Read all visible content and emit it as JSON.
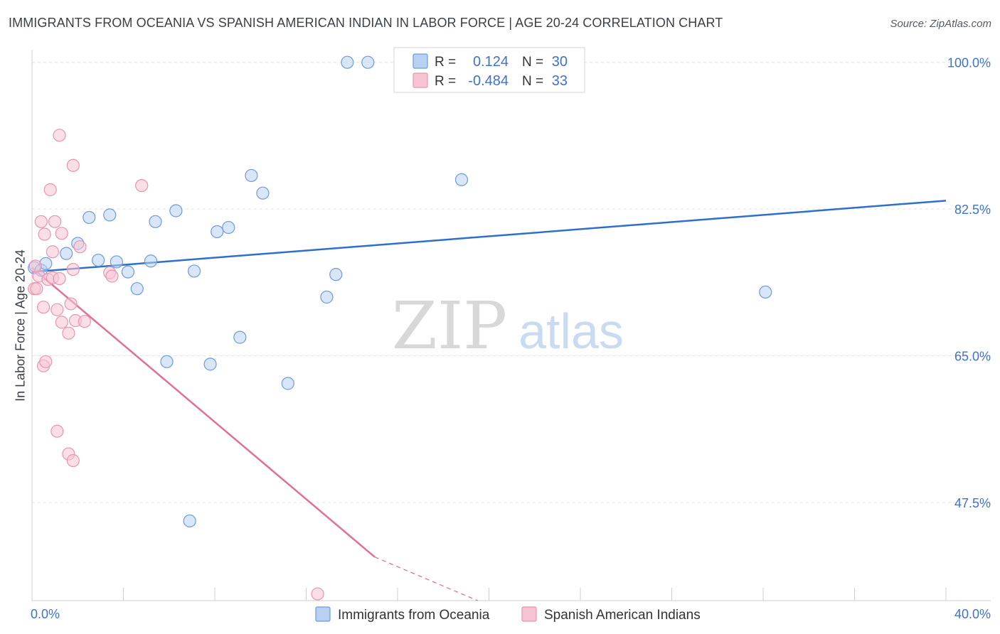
{
  "title": "IMMIGRANTS FROM OCEANIA VS SPANISH AMERICAN INDIAN IN LABOR FORCE | AGE 20-24 CORRELATION CHART",
  "source": "Source: ZipAtlas.com",
  "watermark": {
    "zip": "ZIP",
    "atlas": "atlas"
  },
  "colors": {
    "blue_fill": "#b8d1f3",
    "blue_stroke": "#6f9bd8",
    "blue_line": "#2f6fcc",
    "pink_fill": "#f7c4d4",
    "pink_stroke": "#e795b1",
    "pink_line": "#e0709a",
    "axis_text": "#3f72c9",
    "grid": "#e3e3e3"
  },
  "legend_top": {
    "rows": [
      {
        "r_label": "R =",
        "r_value": "0.124",
        "n_label": "N =",
        "n_value": "30"
      },
      {
        "r_label": "R =",
        "r_value": "-0.484",
        "n_label": "N =",
        "n_value": "33"
      }
    ]
  },
  "chart_data": {
    "type": "scatter",
    "title": "IMMIGRANTS FROM OCEANIA VS SPANISH AMERICAN INDIAN IN LABOR FORCE | AGE 20-24 CORRELATION CHART",
    "ylabel": "In Labor Force | Age 20-24",
    "xlabel": "",
    "xlim": [
      0,
      40
    ],
    "ylim": [
      35.8,
      101.5
    ],
    "x_tick_labels": [
      "0.0%",
      "40.0%"
    ],
    "y_ticks": [
      47.5,
      65.0,
      82.5,
      100.0
    ],
    "y_tick_labels": [
      "47.5%",
      "65.0%",
      "82.5%",
      "100.0%"
    ],
    "grid": true,
    "legend_position": "bottom",
    "series": [
      {
        "name": "Immigrants from Oceania",
        "r": 0.124,
        "n": 30,
        "trend": {
          "x": [
            0,
            40
          ],
          "y": [
            75.0,
            83.5
          ],
          "dashed_to": null
        },
        "points": [
          [
            0.1,
            75.5
          ],
          [
            0.4,
            75.2
          ],
          [
            0.6,
            76.0
          ],
          [
            1.5,
            77.2
          ],
          [
            2.0,
            78.4
          ],
          [
            2.5,
            81.5
          ],
          [
            2.9,
            76.4
          ],
          [
            3.4,
            81.8
          ],
          [
            3.7,
            76.2
          ],
          [
            4.2,
            75.0
          ],
          [
            4.6,
            73.0
          ],
          [
            5.2,
            76.3
          ],
          [
            5.4,
            81.0
          ],
          [
            5.9,
            64.3
          ],
          [
            6.3,
            82.3
          ],
          [
            6.9,
            45.3
          ],
          [
            7.1,
            75.1
          ],
          [
            7.8,
            64.0
          ],
          [
            8.1,
            79.8
          ],
          [
            8.6,
            80.3
          ],
          [
            9.1,
            67.2
          ],
          [
            9.6,
            86.5
          ],
          [
            10.1,
            84.4
          ],
          [
            11.2,
            61.7
          ],
          [
            12.9,
            72.0
          ],
          [
            13.3,
            74.7
          ],
          [
            13.8,
            100.0
          ],
          [
            14.7,
            100.0
          ],
          [
            18.8,
            86.0
          ],
          [
            32.1,
            72.6
          ]
        ]
      },
      {
        "name": "Spanish American Indians",
        "r": -0.484,
        "n": 33,
        "trend": {
          "x": [
            0,
            15.0
          ],
          "y": [
            75.5,
            41.0
          ],
          "dashed_to": [
            19.5,
            35.8
          ]
        },
        "points": [
          [
            0.1,
            73.0
          ],
          [
            0.2,
            73.0
          ],
          [
            0.3,
            74.5
          ],
          [
            0.4,
            81.0
          ],
          [
            0.5,
            70.8
          ],
          [
            0.5,
            63.8
          ],
          [
            0.6,
            64.3
          ],
          [
            0.7,
            74.1
          ],
          [
            0.8,
            84.8
          ],
          [
            0.9,
            77.4
          ],
          [
            0.9,
            74.3
          ],
          [
            1.0,
            81.0
          ],
          [
            1.1,
            56.0
          ],
          [
            1.1,
            70.5
          ],
          [
            1.2,
            91.3
          ],
          [
            1.2,
            74.2
          ],
          [
            1.3,
            69.0
          ],
          [
            1.3,
            79.6
          ],
          [
            1.6,
            53.3
          ],
          [
            1.6,
            67.7
          ],
          [
            1.7,
            71.2
          ],
          [
            1.8,
            87.7
          ],
          [
            1.8,
            52.5
          ],
          [
            1.8,
            75.3
          ],
          [
            1.9,
            69.2
          ],
          [
            2.1,
            78.0
          ],
          [
            2.3,
            69.1
          ],
          [
            3.4,
            74.9
          ],
          [
            3.5,
            74.5
          ],
          [
            4.8,
            85.3
          ],
          [
            12.5,
            36.6
          ],
          [
            0.15,
            75.7
          ],
          [
            0.55,
            79.5
          ]
        ]
      }
    ]
  }
}
